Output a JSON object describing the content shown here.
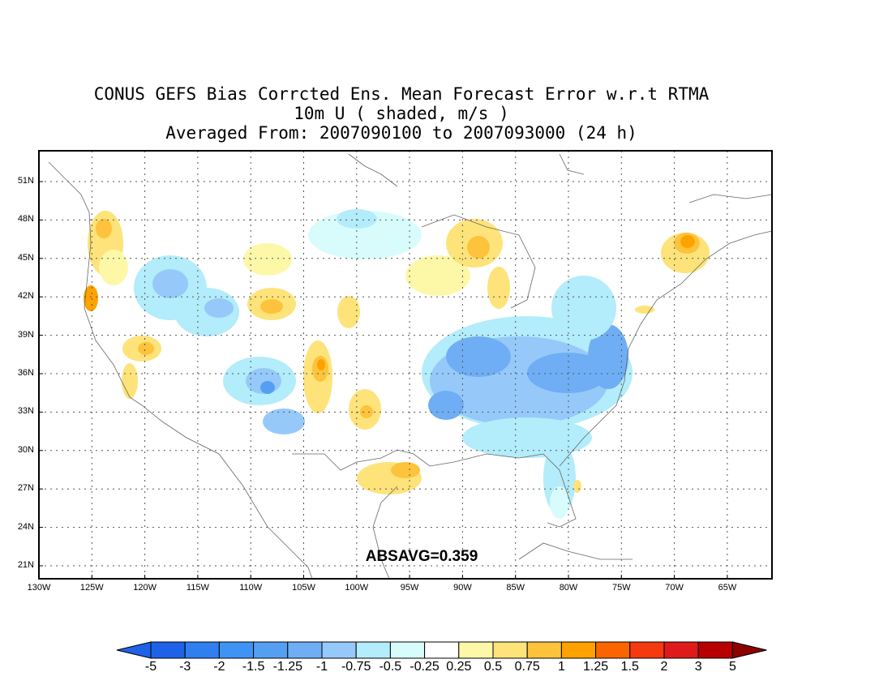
{
  "title_lines": [
    "CONUS GEFS Bias Corrcted Ens. Mean Forecast Error w.r.t RTMA",
    "10m U ( shaded, m/s )",
    "Averaged From: 2007090100 to 2007093000 (24 h)"
  ],
  "annotation": "ABSAVG=0.359",
  "lat_labels": [
    "51N",
    "48N",
    "45N",
    "42N",
    "39N",
    "36N",
    "33N",
    "30N",
    "27N",
    "24N",
    "21N"
  ],
  "lon_labels": [
    "130W",
    "125W",
    "120W",
    "115W",
    "110W",
    "105W",
    "100W",
    "95W",
    "90W",
    "85W",
    "80W",
    "75W",
    "70W",
    "65W"
  ],
  "colorbar": {
    "labels": [
      "-5",
      "-3",
      "-2",
      "-1.5",
      "-1.25",
      "-1",
      "-0.75",
      "-0.5",
      "-0.25",
      "0.25",
      "0.5",
      "0.75",
      "1",
      "1.25",
      "1.5",
      "2",
      "3",
      "5"
    ],
    "colors": [
      "#1f62e8",
      "#2f7ff0",
      "#3e93f4",
      "#559ff2",
      "#6faef4",
      "#96c9fa",
      "#b3ecfa",
      "#d8fcfc",
      "#ffffff",
      "#fdf8a8",
      "#fde37a",
      "#fdc33c",
      "#fda200",
      "#fb6500",
      "#f53a10",
      "#de1a1a",
      "#b80000",
      "#8c0000"
    ]
  },
  "colors": {
    "gridline": "#555555",
    "frame": "#000000",
    "coast": "#666666"
  }
}
